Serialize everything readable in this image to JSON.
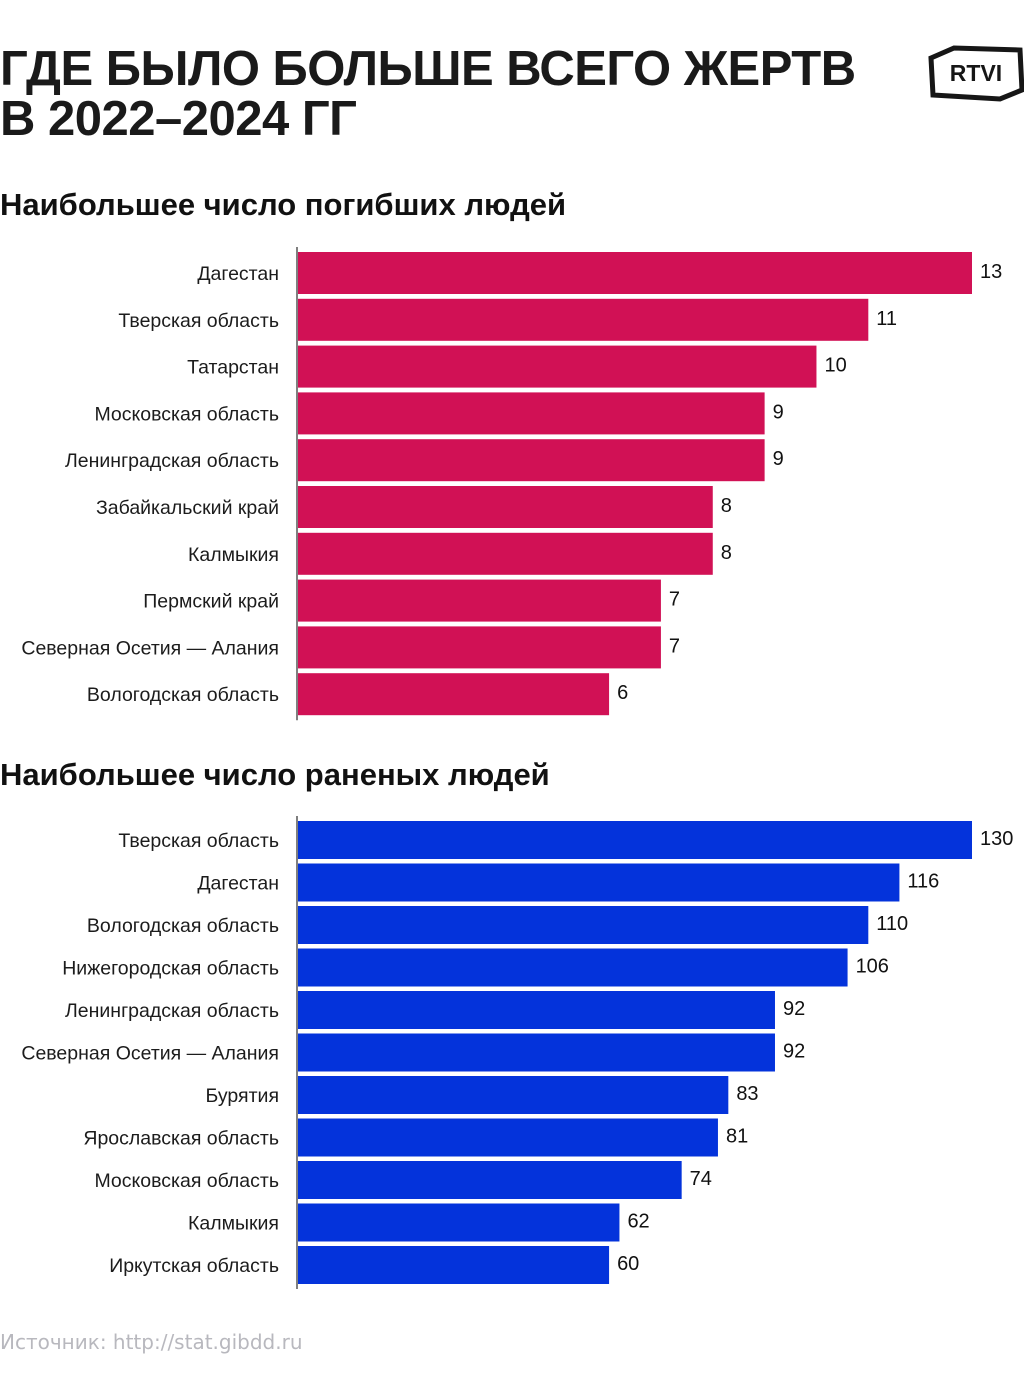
{
  "header": {
    "title_line1": "ГДЕ БЫЛО БОЛЬШЕ ВСЕГО ЖЕРТВ",
    "title_line2": "В 2022–2024 ГГ",
    "logo_text": "RTVI"
  },
  "source": "Источник: http://stat.gibdd.ru",
  "colors": {
    "killed": "#D11155",
    "injured": "#0433DB",
    "axis": "#555555"
  },
  "chart_data": [
    {
      "type": "bar",
      "orientation": "horizontal",
      "title": "Наибольшее число погибших людей",
      "xlabel": "",
      "ylabel": "",
      "xlim": [
        0,
        13
      ],
      "grid": false,
      "categories": [
        "Дагестан",
        "Тверская область",
        "Татарстан",
        "Московская область",
        "Ленинградская область",
        "Забайкальский край",
        "Калмыкия",
        "Пермский край",
        "Северная Осетия — Алания",
        "Вологодская область"
      ],
      "values": [
        13,
        11,
        10,
        9,
        9,
        8,
        8,
        7,
        7,
        6
      ],
      "value_labels": [
        "13",
        "11",
        "10",
        "9",
        "9",
        "8",
        "8",
        "7",
        "7",
        "6"
      ]
    },
    {
      "type": "bar",
      "orientation": "horizontal",
      "title": "Наибольшее число раненых людей",
      "xlabel": "",
      "ylabel": "",
      "xlim": [
        0,
        130
      ],
      "grid": false,
      "categories": [
        "Тверская область",
        "Дагестан",
        "Вологодская область",
        "Нижегородская область",
        "Ленинградская область",
        "Северная Осетия — Алания",
        "Бурятия",
        "Ярославская область",
        "Московская область",
        "Калмыкия",
        "Иркутская область"
      ],
      "values": [
        130,
        116,
        110,
        106,
        92,
        92,
        83,
        81,
        74,
        62,
        60
      ],
      "value_labels": [
        "130",
        "116",
        "110",
        "106",
        "92",
        "92",
        "83",
        "81",
        "74",
        "62",
        "60"
      ]
    }
  ]
}
